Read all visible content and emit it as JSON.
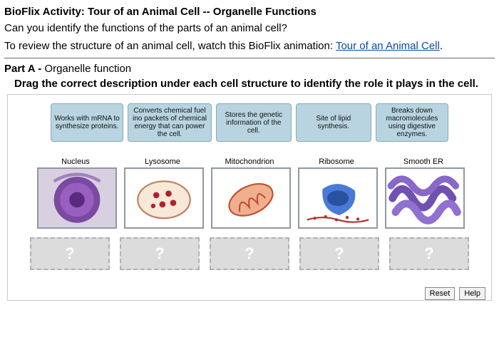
{
  "header": {
    "title": "BioFlix Activity: Tour of an Animal Cell -- Organelle Functions",
    "question": "Can you identify the functions of the parts of an animal cell?",
    "review_prefix": "To review the structure of an animal cell, watch this BioFlix animation: ",
    "review_link": "Tour of an Animal Cell",
    "review_suffix": "."
  },
  "parta": {
    "label": "Part A -",
    "subtitle": " Organelle function",
    "instruction": "Drag the correct description under each cell structure to identify the role it plays in the cell."
  },
  "chips": [
    "Works with mRNA to synthesize proteins.",
    "Converts chemical fuel ino packets of chemical energy that can power the cell.",
    "Stores the genetic information of the cell.",
    "Site of lipid synthesis.",
    "Breaks down macromolecules using digestive enzymes."
  ],
  "targets": [
    {
      "label": "Nucleus"
    },
    {
      "label": "Lysosome"
    },
    {
      "label": "Mitochondrion"
    },
    {
      "label": "Ribosome"
    },
    {
      "label": "Smooth ER"
    }
  ],
  "drop_placeholder": "?",
  "buttons": {
    "reset": "Reset",
    "help": "Help"
  },
  "colors": {
    "chip_bg": "#b8d4e0",
    "chip_border": "#8aa8b8",
    "drop_bg": "#dcdcdc",
    "drop_border": "#b0b0b0",
    "link": "#0b4aa2"
  },
  "chip_widths": [
    96,
    112,
    100,
    100,
    96
  ]
}
